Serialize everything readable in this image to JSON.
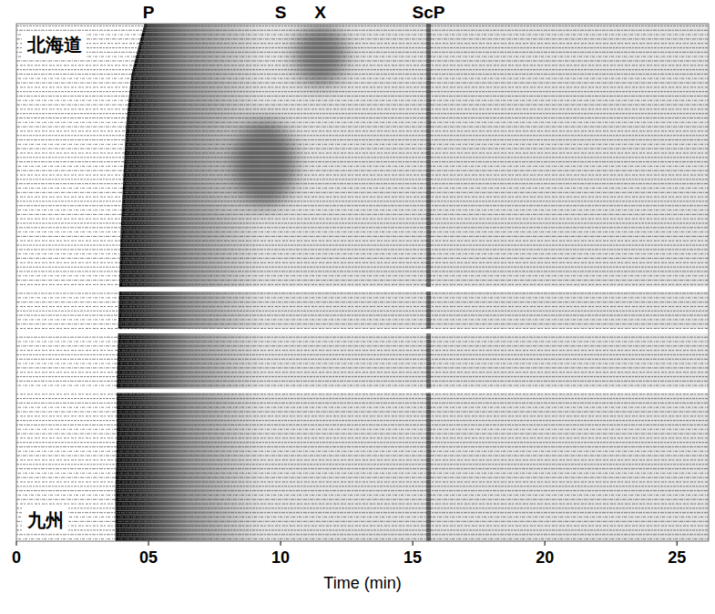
{
  "chart_data": {
    "type": "record_section",
    "x_label": "Time (min)",
    "xlim": [
      0,
      26.2
    ],
    "xticks": [
      0,
      {
        "value": 5,
        "label": "05"
      },
      10,
      15,
      20,
      25
    ],
    "tick_labels": "x",
    "grid": false,
    "phases": [
      {
        "label": "P",
        "x": 5
      },
      {
        "label": "S",
        "x": 10
      },
      {
        "label": "X",
        "x": 11.5
      },
      {
        "label": "ScP",
        "x": 15.6
      }
    ],
    "first_arrival": [
      4.9,
      4.4,
      4.2,
      4.1,
      4.0,
      3.95,
      3.9,
      3.85,
      3.85,
      3.8,
      3.8
    ],
    "annotations": [
      "北海道",
      "九州"
    ]
  }
}
